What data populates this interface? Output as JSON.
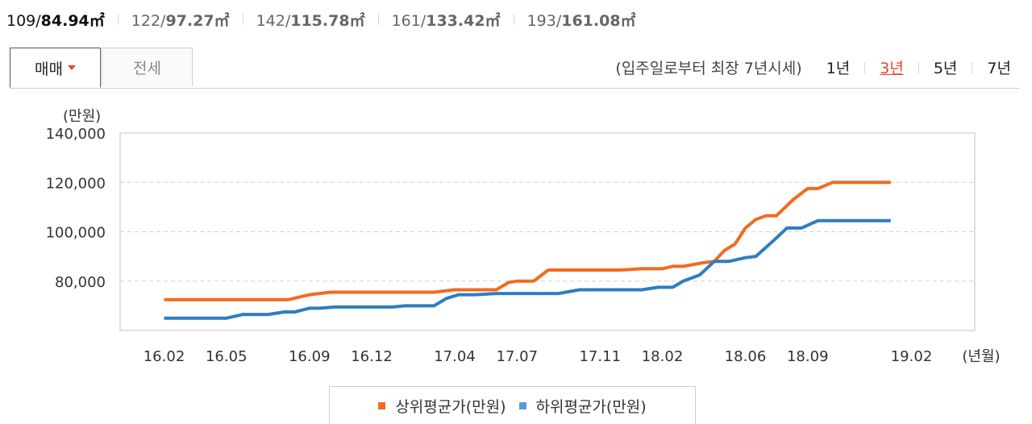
{
  "sizes": [
    {
      "pre": "109/",
      "area": "84.94㎡",
      "active": true
    },
    {
      "pre": "122/",
      "area": "97.27㎡",
      "active": false
    },
    {
      "pre": "142/",
      "area": "115.78㎡",
      "active": false
    },
    {
      "pre": "161/",
      "area": "133.42㎡",
      "active": false
    },
    {
      "pre": "193/",
      "area": "161.08㎡",
      "active": false
    }
  ],
  "tabs": {
    "sale": "매매",
    "lease": "전세"
  },
  "period": {
    "note": "(입주일로부터 최장 7년시세)",
    "options": [
      "1년",
      "3년",
      "5년",
      "7년"
    ],
    "selected": "3년"
  },
  "colors": {
    "upper": "#F26A21",
    "lower": "#2F7DC1",
    "accent": "#E8442B"
  },
  "legend": {
    "upper": "상위평균가(만원)",
    "lower": "하위평균가(만원)"
  },
  "chart_data": {
    "type": "line",
    "ylabel": "(만원)",
    "xlabel": "(년월)",
    "ylim": [
      60000,
      140000
    ],
    "yticks": [
      80000,
      100000,
      120000,
      140000
    ],
    "ytick_labels": [
      "80,000",
      "100,000",
      "120,000",
      "140,000"
    ],
    "xticks": [
      {
        "label": "16.02",
        "t": 0
      },
      {
        "label": "16.05",
        "t": 3
      },
      {
        "label": "16.09",
        "t": 7
      },
      {
        "label": "16.12",
        "t": 10
      },
      {
        "label": "17.04",
        "t": 14
      },
      {
        "label": "17.07",
        "t": 17
      },
      {
        "label": "17.11",
        "t": 21
      },
      {
        "label": "18.02",
        "t": 24
      },
      {
        "label": "18.06",
        "t": 28
      },
      {
        "label": "18.09",
        "t": 31
      },
      {
        "label": "19.02",
        "t": 36
      }
    ],
    "grid": true,
    "legend_position": "bottom",
    "series": [
      {
        "name": "상위평균가(만원)",
        "color": "#F26A21",
        "points": [
          [
            0,
            72500
          ],
          [
            1,
            72500
          ],
          [
            2,
            72500
          ],
          [
            3,
            72500
          ],
          [
            4,
            72500
          ],
          [
            5,
            72500
          ],
          [
            6,
            72500
          ],
          [
            7,
            74500
          ],
          [
            8,
            75500
          ],
          [
            9,
            75500
          ],
          [
            10,
            75500
          ],
          [
            11,
            75500
          ],
          [
            12,
            75500
          ],
          [
            13,
            75500
          ],
          [
            14,
            76500
          ],
          [
            15,
            76500
          ],
          [
            16,
            76500
          ],
          [
            16.6,
            79500
          ],
          [
            17,
            80000
          ],
          [
            17.8,
            80000
          ],
          [
            18.5,
            84500
          ],
          [
            19,
            84500
          ],
          [
            20,
            84500
          ],
          [
            21,
            84500
          ],
          [
            22,
            84500
          ],
          [
            23,
            85000
          ],
          [
            24,
            85000
          ],
          [
            24.5,
            86000
          ],
          [
            25,
            86000
          ],
          [
            26,
            87500
          ],
          [
            26.5,
            88000
          ],
          [
            27,
            92500
          ],
          [
            27.5,
            95000
          ],
          [
            28,
            101500
          ],
          [
            28.5,
            105000
          ],
          [
            29,
            106500
          ],
          [
            29.5,
            106500
          ],
          [
            30.3,
            113000
          ],
          [
            31,
            117500
          ],
          [
            31.5,
            117500
          ],
          [
            32.2,
            120000
          ],
          [
            33,
            120000
          ],
          [
            34,
            120000
          ],
          [
            35,
            120000
          ]
        ]
      },
      {
        "name": "하위평균가(만원)",
        "color": "#2F7DC1",
        "points": [
          [
            0,
            65000
          ],
          [
            1,
            65000
          ],
          [
            2,
            65000
          ],
          [
            3,
            65000
          ],
          [
            3.8,
            66500
          ],
          [
            5,
            66500
          ],
          [
            5.8,
            67500
          ],
          [
            6.3,
            67500
          ],
          [
            7,
            69000
          ],
          [
            7.5,
            69000
          ],
          [
            8.2,
            69500
          ],
          [
            9,
            69500
          ],
          [
            10,
            69500
          ],
          [
            11,
            69500
          ],
          [
            11.6,
            70000
          ],
          [
            12,
            70000
          ],
          [
            13,
            70000
          ],
          [
            13.6,
            73000
          ],
          [
            14.2,
            74500
          ],
          [
            15,
            74500
          ],
          [
            16,
            75000
          ],
          [
            17,
            75000
          ],
          [
            18,
            75000
          ],
          [
            19,
            75000
          ],
          [
            20,
            76500
          ],
          [
            21,
            76500
          ],
          [
            22,
            76500
          ],
          [
            23,
            76500
          ],
          [
            23.8,
            77500
          ],
          [
            24.5,
            77500
          ],
          [
            25,
            80000
          ],
          [
            25.8,
            82500
          ],
          [
            26.5,
            88000
          ],
          [
            27.2,
            88000
          ],
          [
            28,
            89500
          ],
          [
            28.5,
            90000
          ],
          [
            29.3,
            96000
          ],
          [
            30,
            101500
          ],
          [
            30.7,
            101500
          ],
          [
            31.5,
            104500
          ],
          [
            32,
            104500
          ],
          [
            33,
            104500
          ],
          [
            34,
            104500
          ],
          [
            35,
            104500
          ]
        ]
      }
    ]
  }
}
